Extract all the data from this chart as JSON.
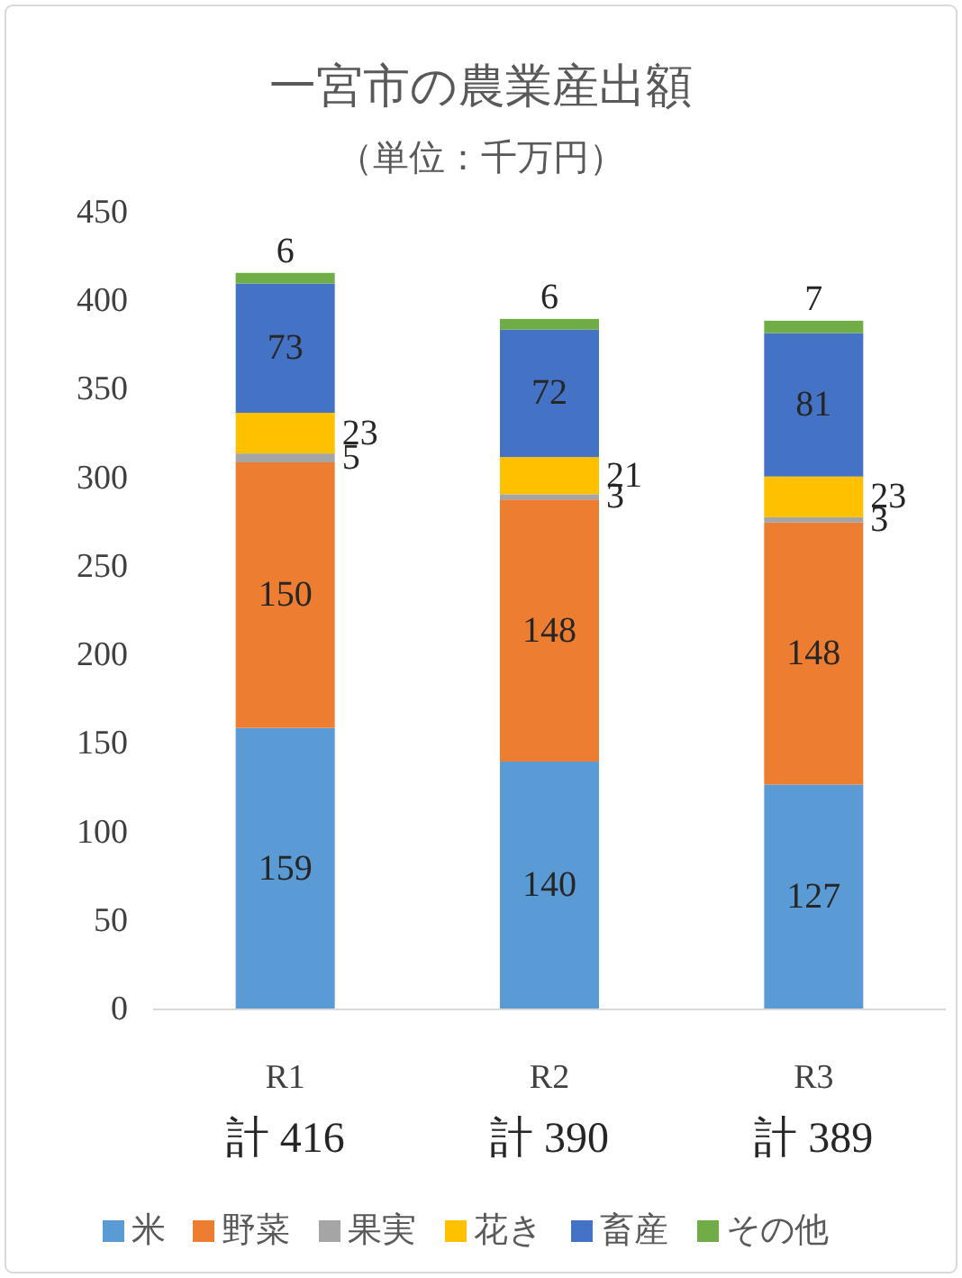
{
  "chart_data": {
    "type": "bar",
    "stacked": true,
    "title": "一宮市の農業産出額",
    "subtitle": "（単位：千万円）",
    "categories": [
      "R1",
      "R2",
      "R3"
    ],
    "series": [
      {
        "name": "米",
        "color": "#5b9bd5",
        "values": [
          159,
          140,
          127
        ]
      },
      {
        "name": "野菜",
        "color": "#ed7d31",
        "values": [
          150,
          148,
          148
        ]
      },
      {
        "name": "果実",
        "color": "#a5a5a5",
        "values": [
          5,
          3,
          3
        ]
      },
      {
        "name": "花き",
        "color": "#ffc000",
        "values": [
          23,
          21,
          23
        ]
      },
      {
        "name": "畜産",
        "color": "#4472c4",
        "values": [
          73,
          72,
          81
        ]
      },
      {
        "name": "その他",
        "color": "#70ad47",
        "values": [
          6,
          6,
          7
        ]
      }
    ],
    "totals": [
      "計 416",
      "計 390",
      "計 389"
    ],
    "ylim": [
      0,
      450
    ],
    "yticks": [
      0,
      50,
      100,
      150,
      200,
      250,
      300,
      350,
      400,
      450
    ],
    "data_labels": true,
    "grid": false,
    "legend": "bottom"
  }
}
